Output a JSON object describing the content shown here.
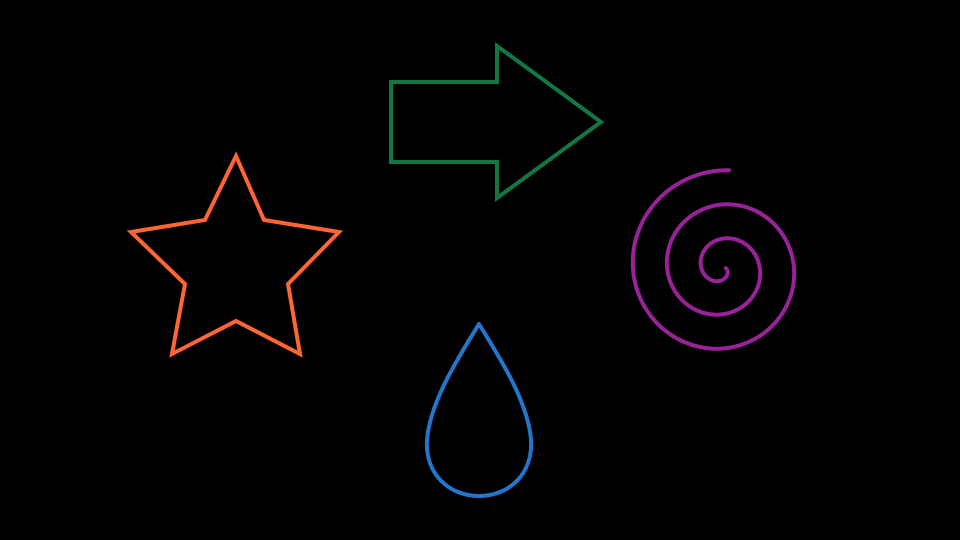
{
  "canvas": {
    "background": "#000000"
  },
  "shapes": [
    {
      "name": "star-outline",
      "icon": "star-icon",
      "color": "#ff6633"
    },
    {
      "name": "arrow-outline",
      "icon": "arrow-right-icon",
      "color": "#117744"
    },
    {
      "name": "spiral-outline",
      "icon": "spiral-icon",
      "color": "#992299"
    },
    {
      "name": "drop-outline",
      "icon": "water-drop-icon",
      "color": "#2277cc"
    }
  ]
}
